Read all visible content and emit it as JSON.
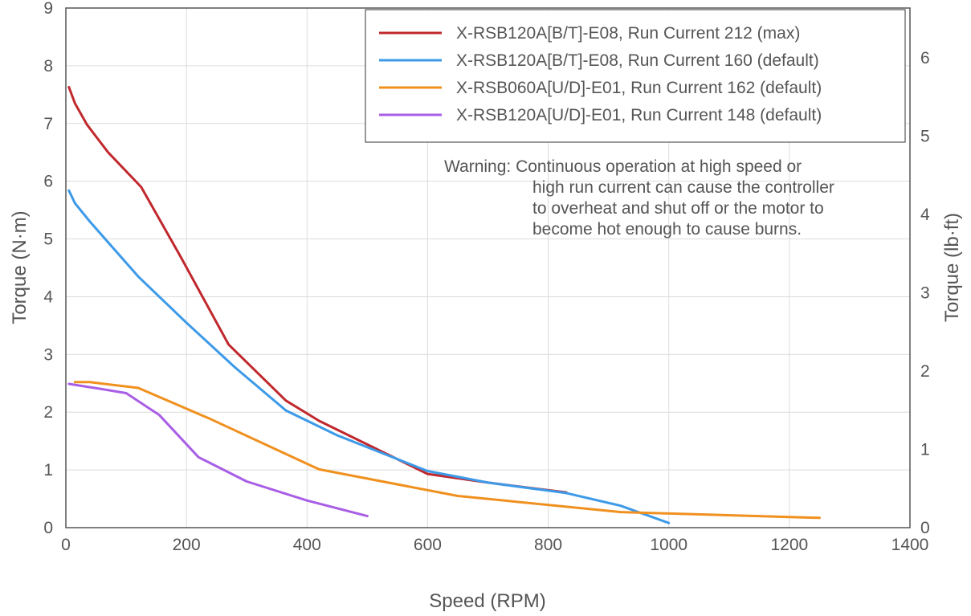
{
  "chart_data": {
    "type": "line",
    "xlabel": "Speed (RPM)",
    "ylabel": "Torque (N·m)",
    "y2label": "Torque (lb·ft)",
    "xlim": [
      0,
      1400
    ],
    "ylim": [
      0,
      9
    ],
    "y2lim": [
      0,
      6.638
    ],
    "x_ticks": [
      0,
      200,
      400,
      600,
      800,
      1000,
      1200,
      1400
    ],
    "y_ticks": [
      0,
      1,
      2,
      3,
      4,
      5,
      6,
      7,
      8,
      9
    ],
    "y2_ticks": [
      0,
      1,
      2,
      3,
      4,
      5,
      6
    ],
    "grid": true,
    "legend_position": "top-right",
    "note_lines": [
      "Warning: Continuous operation at high speed or",
      "high run current can cause the controller",
      "to overheat and shut off or the motor to",
      "become hot enough to cause burns."
    ],
    "series": [
      {
        "name": "X-RSB120A[B/T]-E08, Run Current 212 (max)",
        "color": "#c0282d",
        "x": [
          5,
          15,
          35,
          70,
          125,
          190,
          270,
          365,
          420,
          600,
          700,
          830
        ],
        "y": [
          7.63,
          7.35,
          6.98,
          6.5,
          5.9,
          4.7,
          3.17,
          2.2,
          1.85,
          0.93,
          0.78,
          0.61
        ]
      },
      {
        "name": "X-RSB120A[B/T]-E08, Run Current 160 (default)",
        "color": "#3c9ae8",
        "x": [
          5,
          15,
          40,
          120,
          200,
          280,
          365,
          450,
          600,
          700,
          830,
          920,
          1000
        ],
        "y": [
          5.84,
          5.62,
          5.3,
          4.35,
          3.55,
          2.78,
          2.03,
          1.6,
          0.98,
          0.78,
          0.6,
          0.38,
          0.08
        ]
      },
      {
        "name": "X-RSB060A[U/D]-E01, Run Current 162 (default)",
        "color": "#f0901e",
        "x": [
          15,
          40,
          120,
          240,
          420,
          650,
          920,
          1250
        ],
        "y": [
          2.52,
          2.52,
          2.42,
          1.88,
          1.01,
          0.55,
          0.27,
          0.17
        ]
      },
      {
        "name": "X-RSB120A[U/D]-E01, Run Current 148 (default)",
        "color": "#a95ee6",
        "x": [
          5,
          60,
          100,
          155,
          220,
          300,
          400,
          500
        ],
        "y": [
          2.49,
          2.4,
          2.33,
          1.95,
          1.22,
          0.8,
          0.47,
          0.2
        ]
      }
    ]
  }
}
